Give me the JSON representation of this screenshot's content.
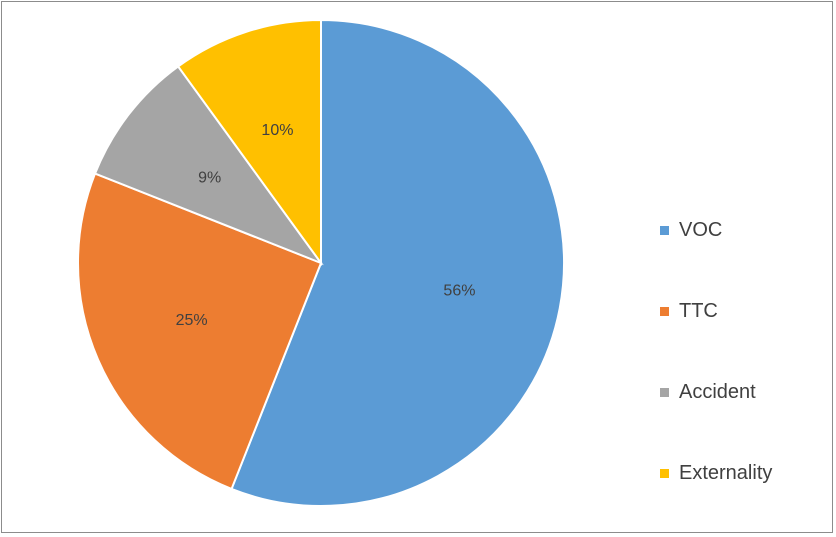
{
  "chart_data": {
    "type": "pie",
    "title": "",
    "legend_position": "right",
    "slices": [
      {
        "name": "VOC",
        "value": 56,
        "label": "56%",
        "color": "#5B9BD5"
      },
      {
        "name": "TTC",
        "value": 25,
        "label": "25%",
        "color": "#ED7D31"
      },
      {
        "name": "Accident",
        "value": 9,
        "label": "9%",
        "color": "#A5A5A5"
      },
      {
        "name": "Externality",
        "value": 10,
        "label": "10%",
        "color": "#FFC000"
      }
    ]
  }
}
